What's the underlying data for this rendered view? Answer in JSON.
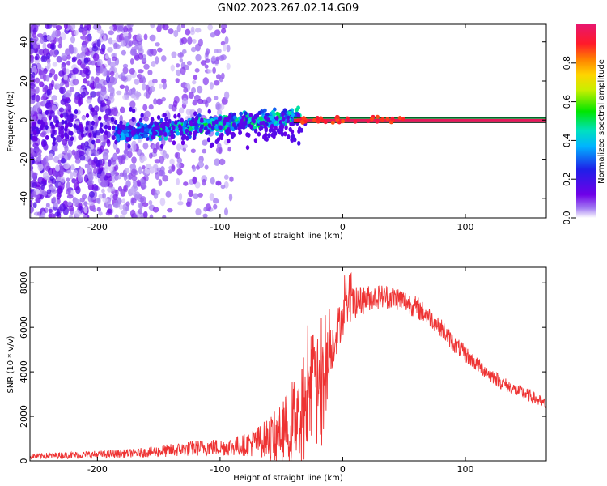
{
  "figure_title": "GN02.2023.267.02.14.G09",
  "colors": {
    "snr_line": "#ee3333",
    "carrier_band": "#e8175d",
    "carrier_band_edge": "#00c853",
    "frame": "#000000"
  },
  "chart_data": [
    {
      "type": "heatmap",
      "title": "",
      "xlabel": "Height of straight line (km)",
      "ylabel": "Frequency (Hz)",
      "xlim": [
        -255,
        166
      ],
      "ylim": [
        -50,
        49
      ],
      "xticks": [
        -200,
        -100,
        0,
        100
      ],
      "yticks": [
        -40,
        -20,
        0,
        20,
        40
      ],
      "colorbar": {
        "label": "Normalized spectral amplitude",
        "range": [
          0,
          1
        ],
        "ticks": [
          "0.0",
          "0.2",
          "0.4",
          "0.6",
          "0.8"
        ],
        "tick_values": [
          0.0,
          0.2,
          0.4,
          0.6,
          0.8
        ],
        "colormap": "rainbow: white/violet (0) → blue → cyan → green → yellow → orange → red → magenta (1)"
      },
      "features": [
        {
          "name": "scattered noise",
          "x_range": [
            -255,
            -90
          ],
          "freq_range": [
            -50,
            49
          ],
          "amplitude": "0.0-0.1"
        },
        {
          "name": "signal trace",
          "x_range": [
            -180,
            -40
          ],
          "freq_range": [
            -10,
            5
          ],
          "amplitude": "0.2-0.5"
        },
        {
          "name": "carrier line",
          "x_range": [
            -40,
            166
          ],
          "freq": 0,
          "amplitude": "0.9-1.0"
        }
      ]
    },
    {
      "type": "line",
      "title": "",
      "xlabel": "Height of straight line (km)",
      "ylabel": "SNR (10 * v/v)",
      "xlim": [
        -255,
        166
      ],
      "ylim": [
        0,
        8700
      ],
      "xticks": [
        -200,
        -100,
        0,
        100
      ],
      "yticks": [
        0,
        2000,
        4000,
        6000,
        8000
      ],
      "series": [
        {
          "color": "#ee3333",
          "x": [
            -255,
            -240,
            -220,
            -200,
            -180,
            -160,
            -150,
            -140,
            -130,
            -120,
            -110,
            -100,
            -90,
            -80,
            -70,
            -60,
            -50,
            -45,
            -40,
            -35,
            -30,
            -25,
            -20,
            -15,
            -10,
            -5,
            0,
            5,
            10,
            15,
            20,
            25,
            30,
            35,
            40,
            45,
            50,
            55,
            60,
            70,
            80,
            90,
            100,
            110,
            120,
            130,
            140,
            150,
            160,
            166
          ],
          "values": [
            200,
            230,
            260,
            280,
            330,
            380,
            420,
            470,
            520,
            570,
            620,
            600,
            650,
            720,
            850,
            1050,
            1350,
            1650,
            2000,
            2500,
            3000,
            3400,
            3600,
            4200,
            5000,
            5800,
            6500,
            7000,
            7100,
            7200,
            7300,
            7350,
            7380,
            7400,
            7350,
            7300,
            7200,
            7050,
            6900,
            6500,
            6000,
            5300,
            4800,
            4300,
            3900,
            3500,
            3200,
            3000,
            2700,
            2500
          ],
          "spread": [
            120,
            140,
            160,
            180,
            180,
            220,
            260,
            300,
            320,
            350,
            380,
            380,
            420,
            500,
            700,
            900,
            1200,
            1500,
            1800,
            2100,
            2400,
            2400,
            2300,
            1500,
            1200,
            1000,
            900,
            800,
            700,
            650,
            600,
            550,
            550,
            550,
            550,
            550,
            500,
            500,
            500,
            450,
            420,
            400,
            380,
            350,
            330,
            320,
            300,
            300,
            280,
            280
          ]
        }
      ]
    }
  ]
}
